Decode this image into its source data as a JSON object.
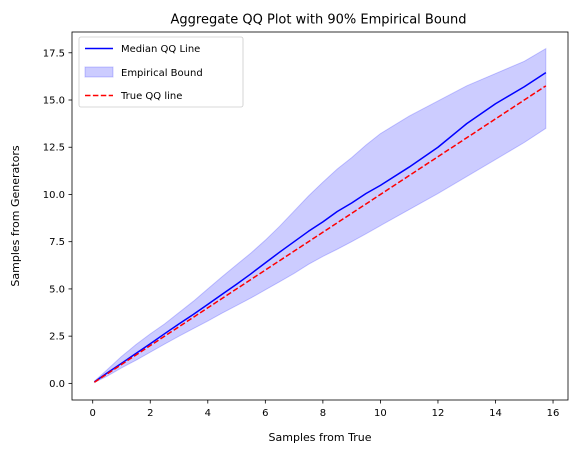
{
  "chart_data": {
    "type": "line",
    "title": "Aggregate QQ Plot with 90% Empirical Bound",
    "xlabel": "Samples from True",
    "ylabel": "Samples from Generators",
    "xlim": [
      -0.72,
      16.52
    ],
    "ylim": [
      -0.88,
      18.6
    ],
    "xticks": [
      0,
      2,
      4,
      6,
      8,
      10,
      12,
      14,
      16
    ],
    "xtick_labels": [
      "0",
      "2",
      "4",
      "6",
      "8",
      "10",
      "12",
      "14",
      "16"
    ],
    "yticks": [
      0.0,
      2.5,
      5.0,
      7.5,
      10.0,
      12.5,
      15.0,
      17.5
    ],
    "ytick_labels": [
      "0.0",
      "2.5",
      "5.0",
      "7.5",
      "10.0",
      "12.5",
      "15.0",
      "17.5"
    ],
    "grid": false,
    "legend_position": "top-left",
    "legend": [
      {
        "label": "Median QQ Line",
        "kind": "line",
        "color": "#0000ff"
      },
      {
        "label": "Empirical Bound",
        "kind": "fill",
        "color": "#0000ff"
      },
      {
        "label": "True QQ line",
        "kind": "dashed",
        "color": "#ff0000"
      }
    ],
    "series": [
      {
        "name": "Median QQ Line",
        "style": "solid",
        "color": "#0000ff",
        "x": [
          0.06,
          0.5,
          1.0,
          1.5,
          2.0,
          2.5,
          3.0,
          3.5,
          4.0,
          4.5,
          5.0,
          5.5,
          6.0,
          6.5,
          7.0,
          7.5,
          8.0,
          8.5,
          9.0,
          9.5,
          10.0,
          11.0,
          12.0,
          13.0,
          14.0,
          15.0,
          15.75
        ],
        "y": [
          0.08,
          0.55,
          1.06,
          1.58,
          2.1,
          2.63,
          3.15,
          3.65,
          4.18,
          4.72,
          5.25,
          5.8,
          6.38,
          6.95,
          7.5,
          8.05,
          8.55,
          9.1,
          9.55,
          10.05,
          10.48,
          11.45,
          12.5,
          13.75,
          14.8,
          15.7,
          16.45
        ]
      },
      {
        "name": "Empirical Bound",
        "style": "fill",
        "color": "#0000ff",
        "opacity": 0.2,
        "x": [
          0.06,
          0.5,
          1.0,
          1.5,
          2.0,
          2.5,
          3.0,
          3.5,
          4.0,
          4.5,
          5.0,
          5.5,
          6.0,
          6.5,
          7.0,
          7.5,
          8.0,
          8.5,
          9.0,
          9.5,
          10.0,
          11.0,
          12.0,
          13.0,
          14.0,
          15.0,
          15.75
        ],
        "lower": [
          0.05,
          0.38,
          0.82,
          1.22,
          1.65,
          2.08,
          2.5,
          2.9,
          3.3,
          3.72,
          4.12,
          4.52,
          4.95,
          5.38,
          5.82,
          6.3,
          6.72,
          7.1,
          7.5,
          7.92,
          8.35,
          9.2,
          10.05,
          10.95,
          11.85,
          12.75,
          13.5
        ],
        "upper": [
          0.12,
          0.72,
          1.42,
          2.05,
          2.62,
          3.15,
          3.75,
          4.35,
          5.0,
          5.65,
          6.28,
          6.9,
          7.58,
          8.32,
          9.12,
          9.92,
          10.65,
          11.35,
          11.95,
          12.62,
          13.22,
          14.15,
          14.95,
          15.75,
          16.4,
          17.05,
          17.72
        ]
      },
      {
        "name": "True QQ line",
        "style": "dashed",
        "color": "#ff0000",
        "x": [
          0.06,
          15.75
        ],
        "y": [
          0.06,
          15.75
        ]
      }
    ]
  }
}
